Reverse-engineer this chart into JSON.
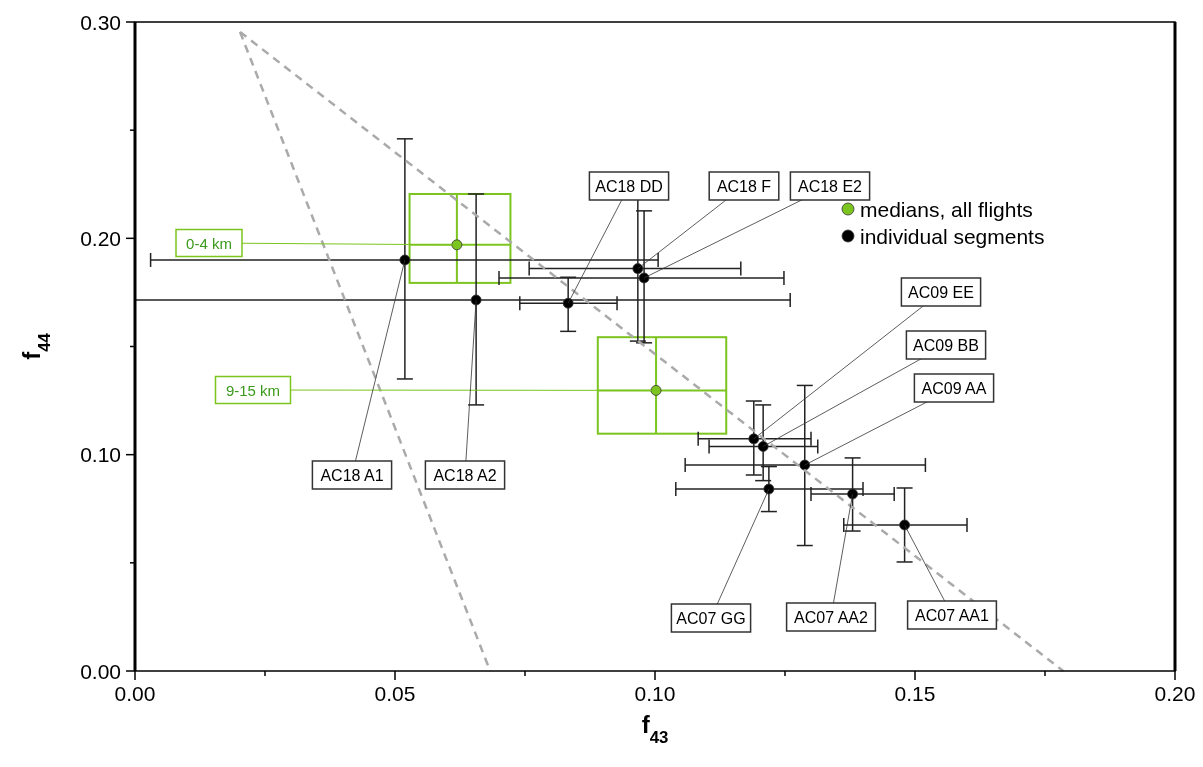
{
  "chart_data": {
    "type": "scatter",
    "xlabel": "f$_{43}$",
    "ylabel": "f$_{44}$",
    "xlim": [
      0,
      0.2
    ],
    "ylim": [
      0,
      0.3
    ],
    "xticks": [
      {
        "value": 0,
        "label": "0.00"
      },
      {
        "value": 0.025,
        "label": null
      },
      {
        "value": 0.05,
        "label": "0.05"
      },
      {
        "value": 0.075,
        "label": null
      },
      {
        "value": 0.1,
        "label": "0.10"
      },
      {
        "value": 0.125,
        "label": null
      },
      {
        "value": 0.15,
        "label": "0.15"
      },
      {
        "value": 0.175,
        "label": null
      },
      {
        "value": 0.2,
        "label": "0.20"
      }
    ],
    "yticks": [
      {
        "value": 0,
        "label": "0.00"
      },
      {
        "value": 0.05,
        "label": null
      },
      {
        "value": 0.1,
        "label": "0.10"
      },
      {
        "value": 0.15,
        "label": null
      },
      {
        "value": 0.2,
        "label": "0.20"
      },
      {
        "value": 0.25,
        "label": null
      },
      {
        "value": 0.3,
        "label": "0.30"
      }
    ],
    "grid": false,
    "legend": "top right",
    "marker": "circle",
    "series": [
      {
        "name": "medians, all flights",
        "color": "#7cc41f",
        "x": [
          0.0619,
          0.1002
        ],
        "values": [
          0.197,
          0.1297
        ],
        "errors": [
          [
            0.1794,
            0.2205
          ],
          [
            0.1097,
            0.1543
          ]
        ],
        "xerrors": [
          [
            0.0528,
            0.0722
          ],
          [
            0.089,
            0.1137
          ]
        ]
      },
      {
        "name": "individual segments",
        "color": "#000000",
        "x": [
          0.0519,
          0.0656,
          0.0833,
          0.0967,
          0.0979,
          0.119,
          0.1208,
          0.1288,
          0.1219,
          0.138,
          0.148
        ],
        "values": [
          0.19,
          0.1715,
          0.17,
          0.186,
          0.1817,
          0.1073,
          0.1038,
          0.0952,
          0.0841,
          0.0818,
          0.0675
        ],
        "errors": [
          [
            0.135,
            0.246
          ],
          [
            0.123,
            0.2205
          ],
          [
            0.157,
            0.182
          ],
          [
            0.1525,
            0.219
          ],
          [
            0.1517,
            0.2127
          ],
          [
            0.0906,
            0.1248
          ],
          [
            0.088,
            0.123
          ],
          [
            0.058,
            0.132
          ],
          [
            0.0737,
            0.0945
          ],
          [
            0.0647,
            0.0985
          ],
          [
            0.0504,
            0.0846
          ]
        ],
        "xerrors": [
          [
            0.003,
            0.1006
          ],
          [
            0,
            0.126
          ],
          [
            0.074,
            0.0927
          ],
          [
            0.0758,
            0.1165
          ],
          [
            0.07,
            0.1248
          ],
          [
            0.1083,
            0.13
          ],
          [
            0.1104,
            0.1313
          ],
          [
            0.1058,
            0.152
          ],
          [
            0.104,
            0.14
          ],
          [
            0.13,
            0.146
          ],
          [
            0.1363,
            0.16
          ]
        ]
      },
      {
        "type": "line",
        "color": "#aaaaaa",
        "line_style": "dashed",
        "marker": "none",
        "x": [
          0.0202,
          0.0683
        ],
        "values": [
          0.2954,
          0
        ]
      },
      {
        "type": "line",
        "color": "#aaaaaa",
        "line_style": "dashed",
        "marker": "none",
        "x": [
          0.0202,
          0.1785
        ],
        "values": [
          0.2954,
          0
        ]
      }
    ],
    "annotations": [
      {
        "text": "0-4 km",
        "x": 0.0619,
        "y": 0.197
      },
      {
        "text": "9-15 km",
        "x": 0.1002,
        "y": 0.1297
      },
      {
        "text": "AC18 A1",
        "x": 0.0519,
        "y": 0.19
      },
      {
        "text": "AC18 A2",
        "x": 0.0656,
        "y": 0.1715
      },
      {
        "text": "AC18 DD",
        "x": 0.0833,
        "y": 0.17
      },
      {
        "text": "AC18 F",
        "x": 0.0967,
        "y": 0.186
      },
      {
        "text": "AC18 E2",
        "x": 0.0979,
        "y": 0.1817
      },
      {
        "text": "AC09 EE",
        "x": 0.119,
        "y": 0.1073
      },
      {
        "text": "AC09 BB",
        "x": 0.1208,
        "y": 0.1038
      },
      {
        "text": "AC09 AA",
        "x": 0.1288,
        "y": 0.0952
      },
      {
        "text": "AC07 GG",
        "x": 0.1219,
        "y": 0.0841
      },
      {
        "text": "AC07 AA2",
        "x": 0.138,
        "y": 0.0818
      },
      {
        "text": "AC07 AA1",
        "x": 0.148,
        "y": 0.0675
      }
    ]
  }
}
